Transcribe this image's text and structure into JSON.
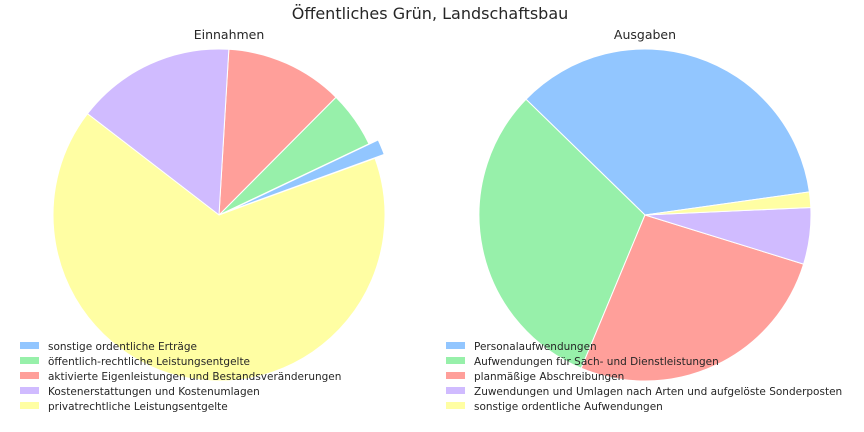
{
  "chart_data": {
    "title": "Öffentliches Grün, Landschaftsbau",
    "charts": [
      {
        "type": "pie",
        "title": "Einnahmen",
        "legend_position": "lower-left",
        "start_angle_deg": 20,
        "slices": [
          {
            "label": "sonstige ordentliche Erträge",
            "value": 1.5,
            "color": "#92c6ff",
            "exploded": true
          },
          {
            "label": "öffentlich-rechtliche Leistungsentgelte",
            "value": 5.5,
            "color": "#97f0aa",
            "exploded": false
          },
          {
            "label": "aktivierte Eigenleistungen und Bestandsveränderungen",
            "value": 11.5,
            "color": "#ff9f9a",
            "exploded": false
          },
          {
            "label": "Kostenerstattungen und Kostenumlagen",
            "value": 15.5,
            "color": "#d0bbff",
            "exploded": false
          },
          {
            "label": "privatrechtliche Leistungsentgelte",
            "value": 66.0,
            "color": "#fffea3",
            "exploded": false
          }
        ]
      },
      {
        "type": "pie",
        "title": "Ausgaben",
        "legend_position": "lower-left",
        "start_angle_deg": 8,
        "slices": [
          {
            "label": "Personalaufwendungen",
            "value": 35.5,
            "color": "#92c6ff"
          },
          {
            "label": "Aufwendungen für Sach- und Dienstleistungen",
            "value": 31.0,
            "color": "#97f0aa"
          },
          {
            "label": "planmäßige Abschreibungen",
            "value": 26.5,
            "color": "#ff9f9a"
          },
          {
            "label": "Zuwendungen und Umlagen nach Arten und aufgelöste Sonderposten",
            "value": 5.5,
            "color": "#d0bbff"
          },
          {
            "label": "sonstige ordentliche Aufwendungen",
            "value": 1.5,
            "color": "#fffea3"
          }
        ]
      }
    ]
  }
}
